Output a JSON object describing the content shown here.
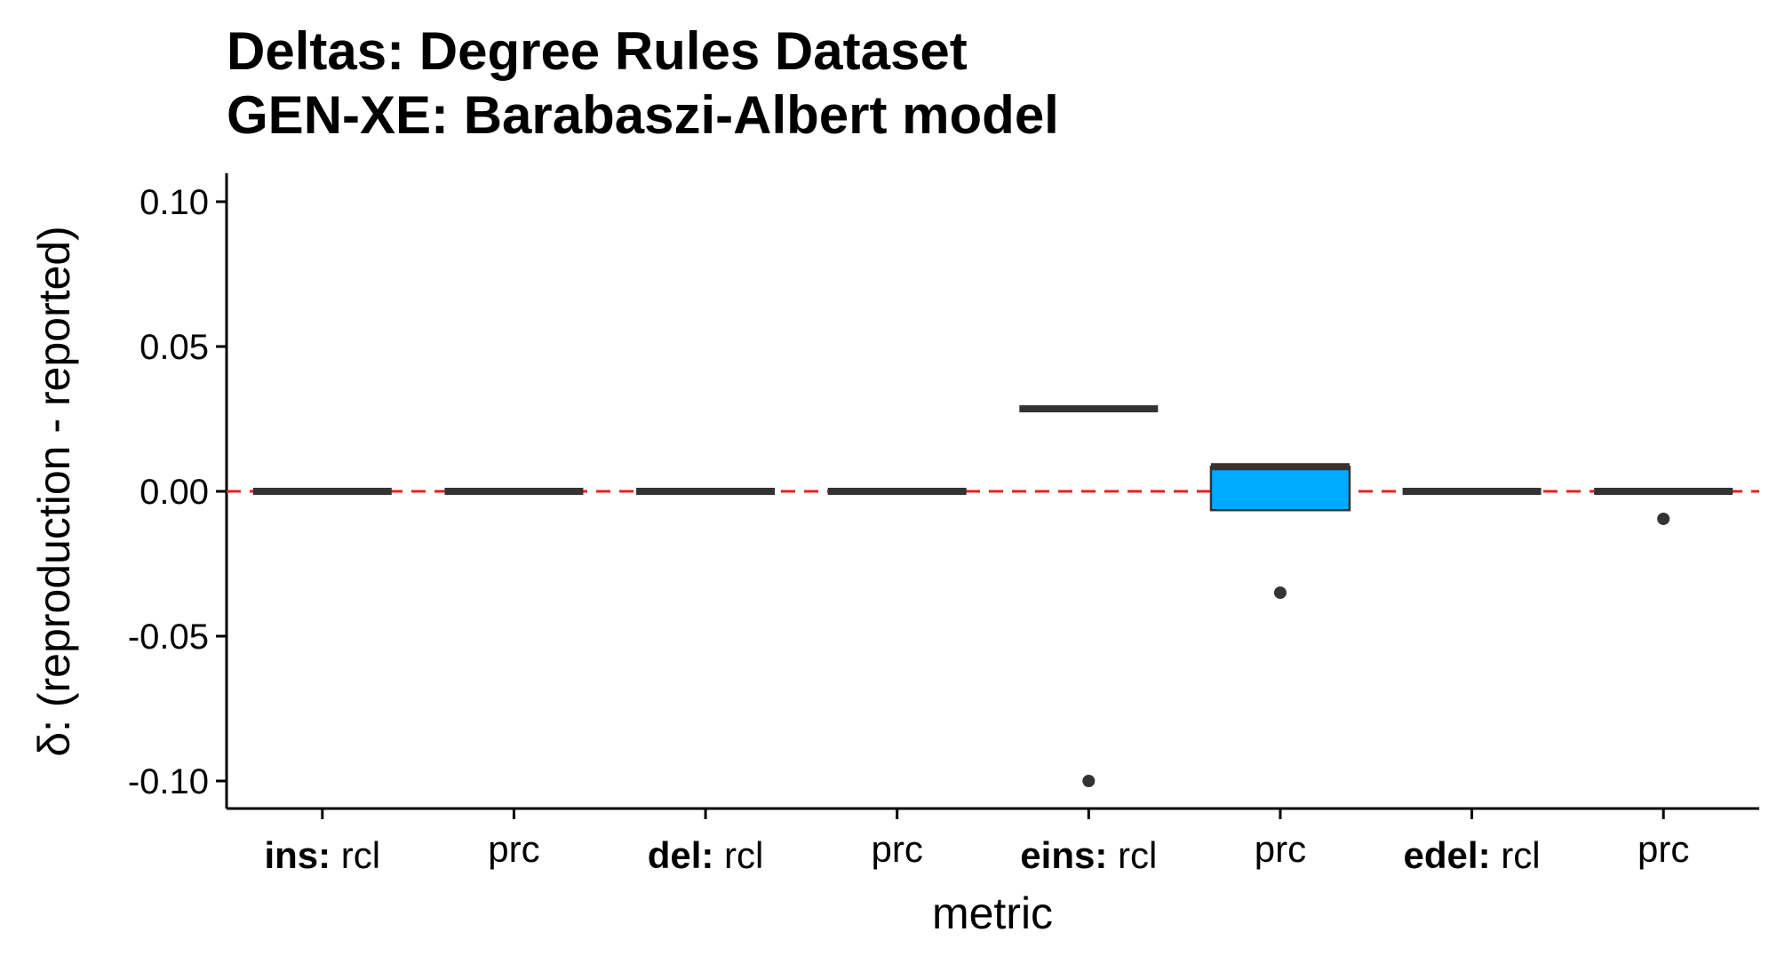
{
  "chart_data": {
    "type": "boxplot",
    "title_lines": [
      "Deltas: Degree Rules Dataset",
      "GEN-XE: Barabaszi-Albert model"
    ],
    "xlabel": "metric",
    "ylabel": "δ: (reproduction - reported)",
    "ylim": [
      -0.11,
      0.11
    ],
    "y_ticks": [
      {
        "value": 0.1,
        "label": "0.10"
      },
      {
        "value": 0.05,
        "label": "0.05"
      },
      {
        "value": 0.0,
        "label": "0.00"
      },
      {
        "value": -0.05,
        "label": "-0.05"
      },
      {
        "value": -0.1,
        "label": "-0.10"
      }
    ],
    "reference_line": {
      "value": 0.0,
      "color": "#e8201d",
      "style": "dashed"
    },
    "box_fill": "#00aaff",
    "box_stroke": "#333333",
    "grid": false,
    "categories": [
      {
        "group": "ins:",
        "label": "rcl",
        "q1": 0.0,
        "median": 0.0,
        "q3": 0.0,
        "lower": 0.0,
        "upper": 0.0,
        "outliers": []
      },
      {
        "group": "",
        "label": "prc",
        "q1": 0.0,
        "median": 0.0,
        "q3": 0.0,
        "lower": 0.0,
        "upper": 0.0,
        "outliers": []
      },
      {
        "group": "del:",
        "label": "rcl",
        "q1": 0.0,
        "median": 0.0,
        "q3": 0.0,
        "lower": 0.0,
        "upper": 0.0,
        "outliers": []
      },
      {
        "group": "",
        "label": "prc",
        "q1": 0.0,
        "median": 0.0,
        "q3": 0.0,
        "lower": 0.0,
        "upper": 0.0,
        "outliers": []
      },
      {
        "group": "eins:",
        "label": "rcl",
        "q1": 0.0285,
        "median": 0.0285,
        "q3": 0.0285,
        "lower": 0.0285,
        "upper": 0.0285,
        "outliers": [
          -0.1
        ]
      },
      {
        "group": "",
        "label": "prc",
        "q1": -0.0065,
        "median": 0.0085,
        "q3": 0.0085,
        "lower": -0.0065,
        "upper": 0.0085,
        "outliers": [
          -0.035
        ]
      },
      {
        "group": "edel:",
        "label": "rcl",
        "q1": 0.0,
        "median": 0.0,
        "q3": 0.0,
        "lower": 0.0,
        "upper": 0.0,
        "outliers": []
      },
      {
        "group": "",
        "label": "prc",
        "q1": 0.0,
        "median": 0.0,
        "q3": 0.0,
        "lower": 0.0,
        "upper": 0.0,
        "outliers": [
          -0.0095
        ]
      }
    ]
  }
}
